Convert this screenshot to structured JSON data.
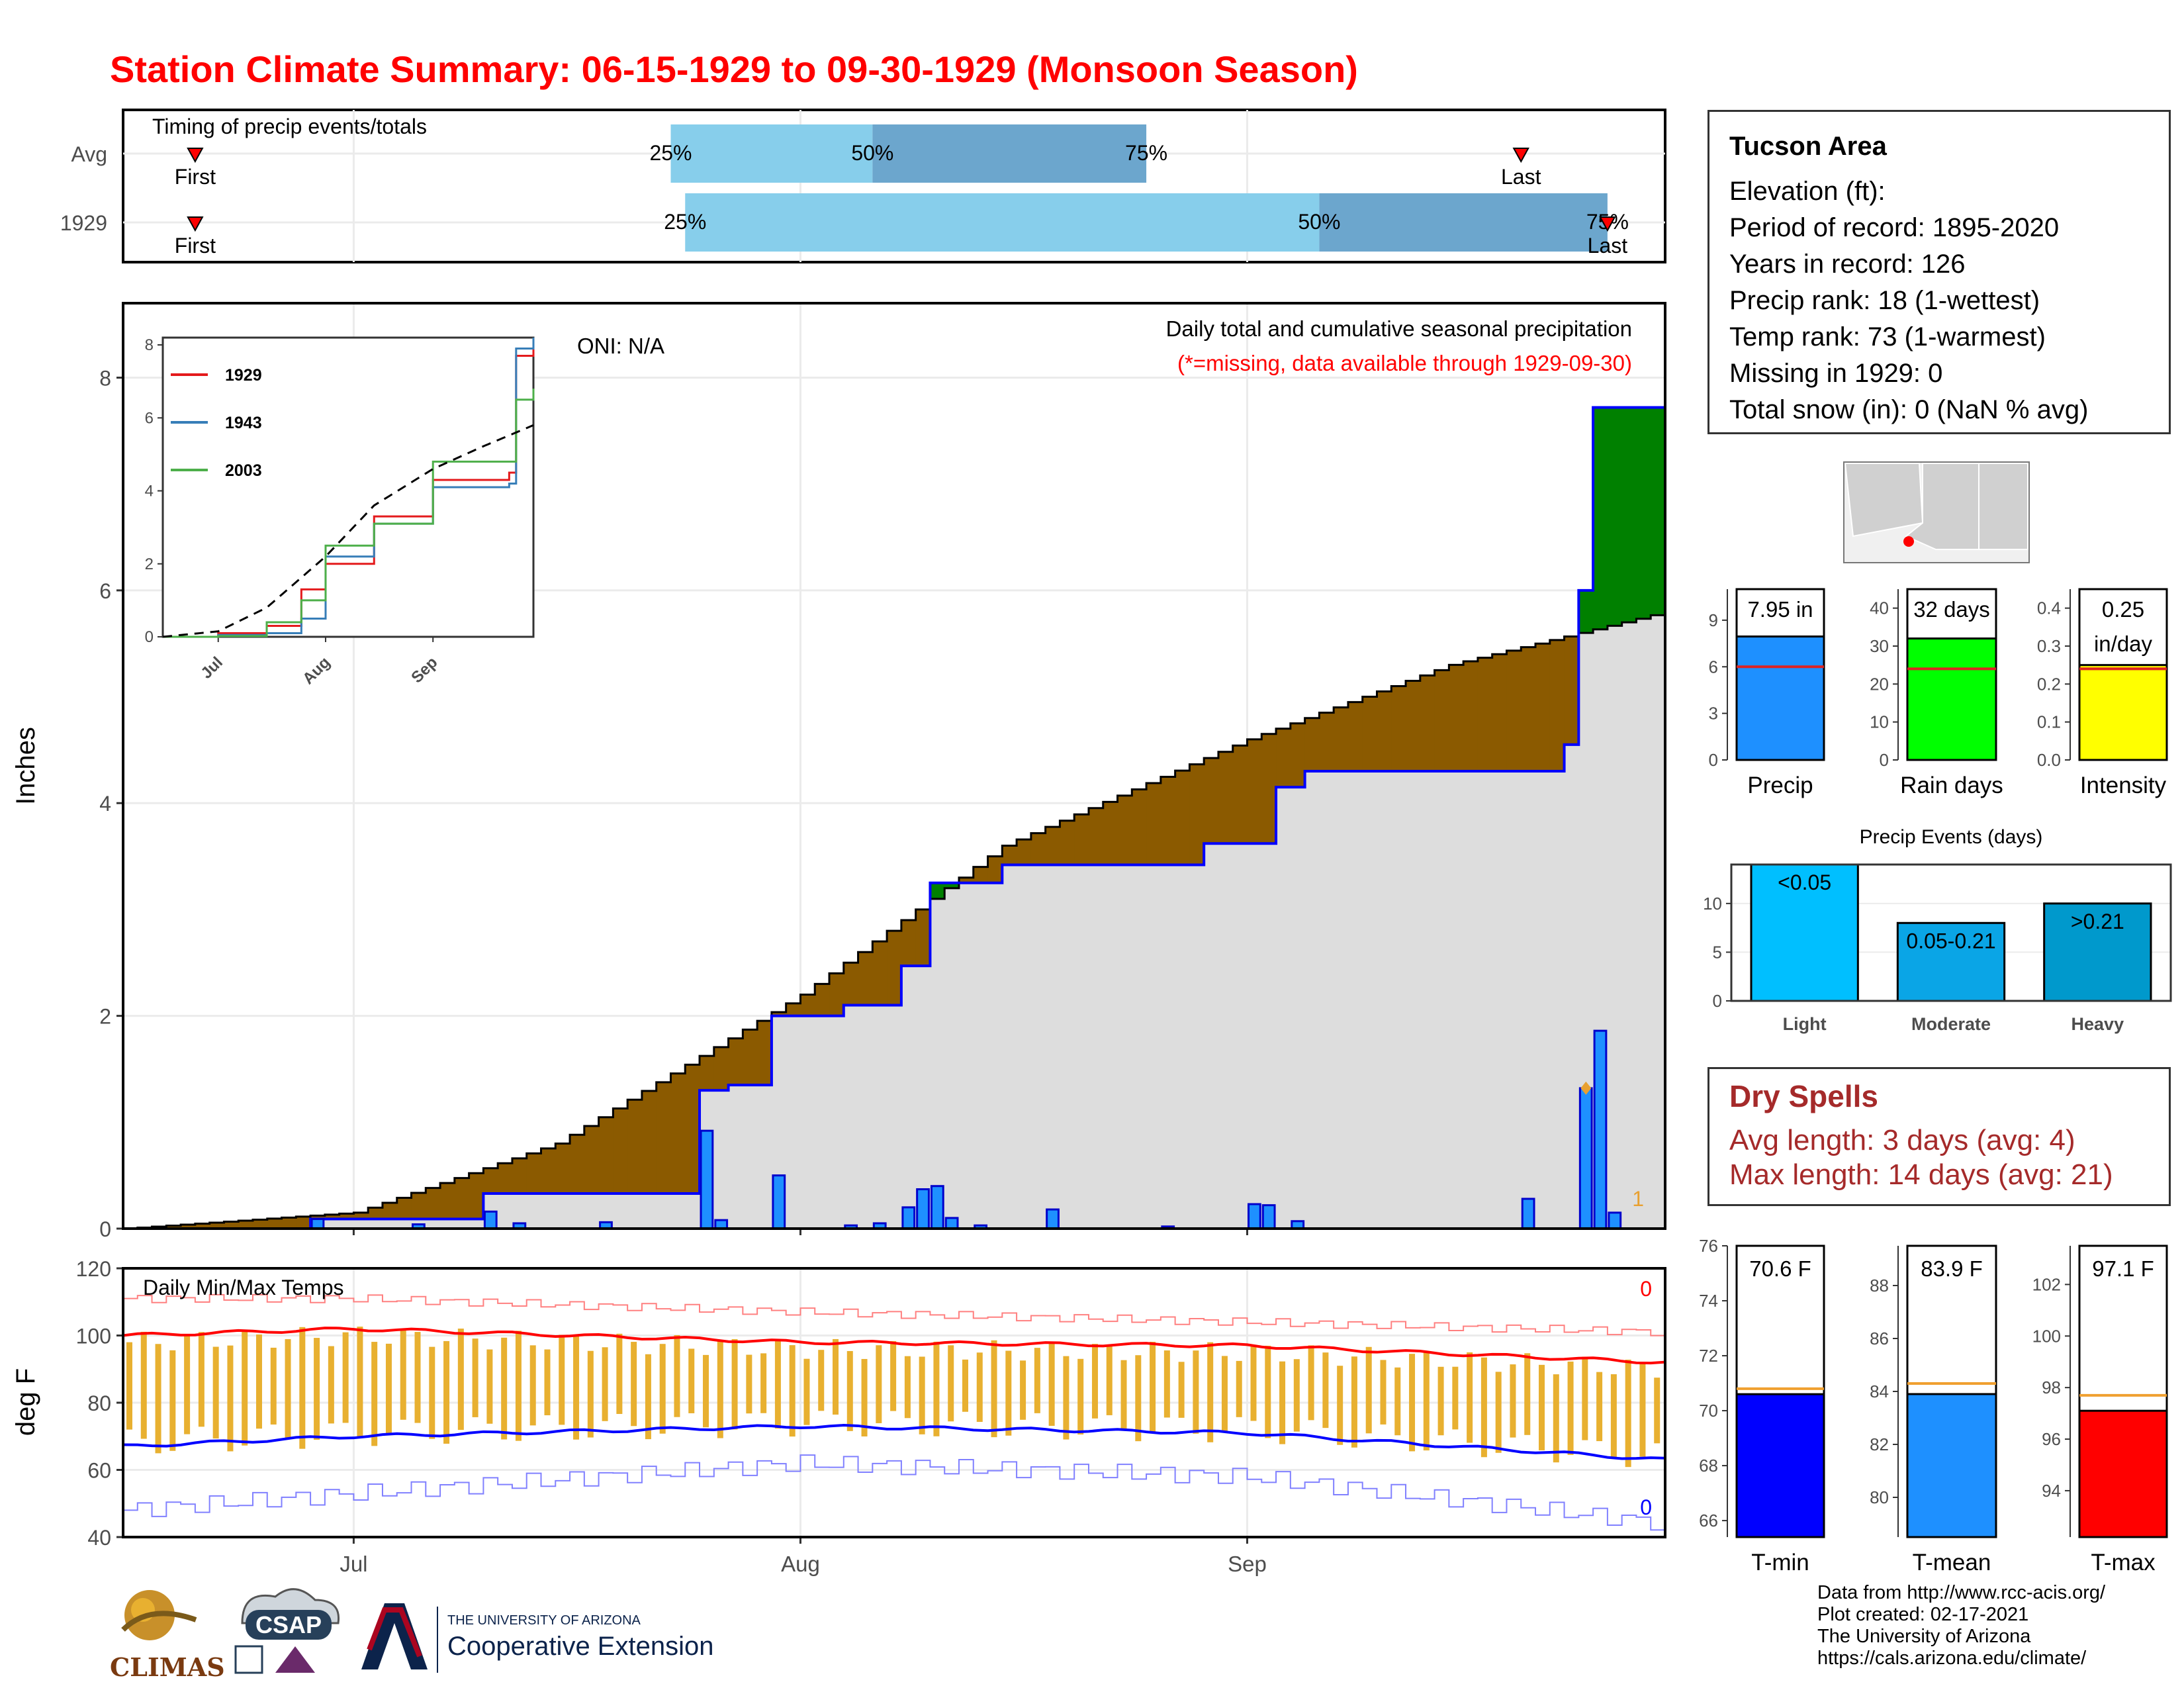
{
  "title": "Station Climate Summary: 06-15-1929 to 09-30-1929 (Monsoon Season)",
  "timing": {
    "title": "Timing of precip events/totals",
    "rows": [
      {
        "label": "Avg",
        "first_label": "First",
        "last_label": "Last",
        "p25_label": "25%",
        "p50_label": "50%",
        "p75_label": "75%"
      },
      {
        "label": "1929",
        "first_label": "First",
        "last_label": "Last",
        "p25_label": "25%",
        "p50_label": "50%",
        "p75_label": "75%"
      }
    ]
  },
  "main_chart": {
    "ylabel": "Inches",
    "oni": "ONI: N/A",
    "caption": "Daily total and cumulative seasonal precipitation",
    "missing_note": "(*=missing, data available through 1929-09-30)",
    "missing_count": "1",
    "y_ticks": [
      "0",
      "2",
      "4",
      "6",
      "8"
    ],
    "x_ticks": [
      "Jul",
      "Aug",
      "Sep"
    ]
  },
  "inset": {
    "legend": [
      "1929",
      "1943",
      "2003"
    ],
    "y_ticks": [
      "0",
      "2",
      "4",
      "6"
    ],
    "x_ticks": [
      "Jul",
      "Aug",
      "Sep"
    ]
  },
  "temp_chart": {
    "title": "Daily Min/Max Temps",
    "ylabel": "deg F",
    "y_ticks": [
      "40",
      "60",
      "80",
      "100",
      "120"
    ],
    "x_ticks": [
      "Jul",
      "Aug",
      "Sep"
    ],
    "max_missing": "0",
    "min_missing": "0"
  },
  "info": {
    "heading": "Tucson Area",
    "lines": [
      "Elevation (ft):",
      "Period of record: 1895-2020",
      "Years in record: 126",
      "Precip rank: 18 (1-wettest)",
      "Temp rank: 73 (1-warmest)",
      "Missing in 1929: 0",
      "Total snow (in): 0 (NaN % avg)"
    ]
  },
  "mini_bars": [
    {
      "label": "Precip",
      "value_label": "7.95 in",
      "ticks": [
        "0",
        "3",
        "6",
        "9"
      ]
    },
    {
      "label": "Rain days",
      "value_label": "32 days",
      "ticks": [
        "0",
        "10",
        "20",
        "30",
        "40"
      ]
    },
    {
      "label": "Intensity",
      "value_label": "0.25",
      "value_label2": "in/day",
      "ticks": [
        "0.0",
        "0.1",
        "0.2",
        "0.3",
        "0.4"
      ]
    }
  ],
  "events": {
    "title": "Precip Events (days)",
    "categories": [
      "Light",
      "Moderate",
      "Heavy"
    ],
    "bar_labels": [
      "<0.05",
      "0.05-0.21",
      ">0.21"
    ],
    "ticks": [
      "0",
      "5",
      "10"
    ]
  },
  "dry": {
    "heading": "Dry Spells",
    "lines": [
      "Avg length: 3 days (avg: 4)",
      "Max length: 14 days (avg: 21)"
    ]
  },
  "temp_bars": [
    {
      "label": "T-min",
      "value_label": "70.6 F",
      "ticks": [
        "66",
        "68",
        "70",
        "72",
        "74",
        "76"
      ]
    },
    {
      "label": "T-mean",
      "value_label": "83.9 F",
      "ticks": [
        "80",
        "82",
        "84",
        "86",
        "88"
      ]
    },
    {
      "label": "T-max",
      "value_label": "97.1 F",
      "ticks": [
        "94",
        "96",
        "98",
        "100",
        "102"
      ]
    }
  ],
  "footer": [
    "Data from http://www.rcc-acis.org/",
    "Plot created: 02-17-2021",
    "The University of Arizona",
    "https://cals.arizona.edu/climate/"
  ],
  "logos": {
    "climas": "CLIMAS",
    "csap": "CSAP",
    "ua_line1": "THE UNIVERSITY OF ARIZONA",
    "ua_line2": "Cooperative Extension"
  },
  "colors": {
    "title": "#ff0000",
    "daily_bar": "#1e90ff",
    "above_avg": "#008000",
    "below_avg": "#8b5a00",
    "avg_area": "#dddddd",
    "temp_bar": "#e8b030",
    "precip_bar": "#1e90ff",
    "raindays_bar": "#00ff00",
    "intensity_bar": "#ffff00",
    "light_bar": "#00bfff",
    "moderate_bar": "#0aa5e6",
    "heavy_bar": "#0099cc",
    "tmin_bar": "#0000ff",
    "tmean_bar": "#1e90ff",
    "tmax_bar": "#ff0000"
  },
  "chart_data": [
    {
      "type": "bar",
      "title": "Timing of precip events/totals",
      "note": "dates of first/last precip event and 25/50/75% of seasonal total",
      "categories": [
        "Avg",
        "1929"
      ],
      "series": [
        {
          "name": "First",
          "values": [
            "1929-06-20",
            "1929-06-20"
          ]
        },
        {
          "name": "25%",
          "values": [
            "1929-07-23",
            "1929-07-24"
          ]
        },
        {
          "name": "50%",
          "values": [
            "1929-08-06",
            "1929-09-06"
          ]
        },
        {
          "name": "75%",
          "values": [
            "1929-08-25",
            "1929-09-26"
          ]
        },
        {
          "name": "Last",
          "values": [
            "1929-09-20",
            "1929-09-26"
          ]
        }
      ]
    },
    {
      "type": "line",
      "title": "Daily total and cumulative seasonal precipitation",
      "ylabel": "Inches",
      "ylim": [
        0,
        8.7
      ],
      "xlim": [
        "1929-06-15",
        "1929-09-30"
      ],
      "cumulative_1929": {
        "x": [
          "1929-06-15",
          "1929-06-28",
          "1929-07-10",
          "1929-07-25",
          "1929-07-27",
          "1929-07-30",
          "1929-08-04",
          "1929-08-08",
          "1929-08-10",
          "1929-08-15",
          "1929-08-29",
          "1929-09-03",
          "1929-09-05",
          "1929-09-23",
          "1929-09-24",
          "1929-09-25",
          "1929-09-30"
        ],
        "y": [
          0,
          0.09,
          0.33,
          1.3,
          1.35,
          2.0,
          2.1,
          2.47,
          3.25,
          3.42,
          3.62,
          4.15,
          4.3,
          4.55,
          6.0,
          7.72,
          7.95
        ]
      },
      "average_cumulative": {
        "x": [
          "1929-06-15",
          "1929-07-01",
          "1929-07-15",
          "1929-08-01",
          "1929-08-15",
          "1929-09-01",
          "1929-09-15",
          "1929-09-30"
        ],
        "y": [
          0,
          0.15,
          0.8,
          2.2,
          3.6,
          4.6,
          5.3,
          5.8
        ]
      },
      "daily_precip": {
        "x": [
          "1929-06-28",
          "1929-07-05",
          "1929-07-10",
          "1929-07-12",
          "1929-07-18",
          "1929-07-25",
          "1929-07-26",
          "1929-07-30",
          "1929-08-04",
          "1929-08-06",
          "1929-08-08",
          "1929-08-09",
          "1929-08-10",
          "1929-08-11",
          "1929-08-13",
          "1929-08-18",
          "1929-08-26",
          "1929-09-01",
          "1929-09-02",
          "1929-09-04",
          "1929-09-20",
          "1929-09-24",
          "1929-09-25",
          "1929-09-26"
        ],
        "y": [
          0.09,
          0.04,
          0.16,
          0.05,
          0.06,
          0.92,
          0.08,
          0.5,
          0.03,
          0.05,
          0.2,
          0.37,
          0.4,
          0.1,
          0.03,
          0.18,
          0.02,
          0.23,
          0.22,
          0.07,
          0.28,
          1.32,
          1.86,
          0.15
        ]
      }
    },
    {
      "type": "line",
      "title": "inset: cumulative precipitation",
      "ylim": [
        0,
        8.2
      ],
      "series": [
        {
          "name": "1929",
          "x": [
            "1929-06-15",
            "1929-07-01",
            "1929-07-15",
            "1929-07-25",
            "1929-08-01",
            "1929-08-15",
            "1929-09-01",
            "1929-09-23",
            "1929-09-25",
            "1929-09-30"
          ],
          "y": [
            0,
            0.1,
            0.3,
            1.3,
            2.0,
            3.3,
            4.3,
            4.5,
            7.7,
            7.95
          ]
        },
        {
          "name": "1943",
          "x": [
            "1929-06-15",
            "1929-07-01",
            "1929-07-15",
            "1929-07-25",
            "1929-08-01",
            "1929-08-15",
            "1929-09-01",
            "1929-09-23",
            "1929-09-25",
            "1929-09-30"
          ],
          "y": [
            0,
            0.05,
            0.1,
            0.5,
            2.2,
            3.1,
            4.1,
            4.2,
            7.9,
            8.2
          ]
        },
        {
          "name": "2003",
          "x": [
            "1929-06-15",
            "1929-07-01",
            "1929-07-15",
            "1929-07-25",
            "1929-08-01",
            "1929-08-15",
            "1929-09-01",
            "1929-09-23",
            "1929-09-25",
            "1929-09-30"
          ],
          "y": [
            0,
            0.02,
            0.4,
            1.0,
            2.5,
            3.1,
            4.8,
            4.8,
            6.5,
            6.8
          ]
        },
        {
          "name": "avg",
          "x": [
            "1929-06-15",
            "1929-07-01",
            "1929-07-15",
            "1929-08-01",
            "1929-08-15",
            "1929-09-01",
            "1929-09-15",
            "1929-09-30"
          ],
          "y": [
            0,
            0.15,
            0.8,
            2.2,
            3.6,
            4.6,
            5.2,
            5.8
          ]
        }
      ]
    },
    {
      "type": "line",
      "title": "Daily Min/Max Temps",
      "ylabel": "deg F",
      "ylim": [
        40,
        120
      ],
      "series": [
        {
          "name": "record max",
          "x": [
            "1929-06-15",
            "1929-07-01",
            "1929-08-01",
            "1929-09-01",
            "1929-09-30"
          ],
          "y": [
            111,
            111,
            107,
            104,
            101
          ]
        },
        {
          "name": "average max",
          "x": [
            "1929-06-15",
            "1929-07-01",
            "1929-08-01",
            "1929-09-01",
            "1929-09-30"
          ],
          "y": [
            100,
            102,
            98,
            97,
            92
          ]
        },
        {
          "name": "average min",
          "x": [
            "1929-06-15",
            "1929-07-01",
            "1929-08-01",
            "1929-09-01",
            "1929-09-30"
          ],
          "y": [
            67,
            70,
            73,
            71,
            63
          ]
        },
        {
          "name": "record min",
          "x": [
            "1929-06-15",
            "1929-07-01",
            "1929-08-01",
            "1929-09-01",
            "1929-09-30"
          ],
          "y": [
            48,
            53,
            62,
            58,
            44
          ]
        }
      ]
    },
    {
      "type": "bar",
      "categories": [
        "Precip"
      ],
      "values": [
        7.95
      ],
      "avg": 6.0,
      "ylim": [
        0,
        11
      ]
    },
    {
      "type": "bar",
      "categories": [
        "Rain days"
      ],
      "values": [
        32
      ],
      "avg": 24,
      "ylim": [
        0,
        45
      ]
    },
    {
      "type": "bar",
      "categories": [
        "Intensity"
      ],
      "values": [
        0.25
      ],
      "avg": 0.24,
      "ylim": [
        0,
        0.45
      ]
    },
    {
      "type": "bar",
      "title": "Precip Events (days)",
      "categories": [
        "Light",
        "Moderate",
        "Heavy"
      ],
      "values": [
        14,
        8,
        10
      ],
      "ylim": [
        0,
        14
      ]
    },
    {
      "type": "bar",
      "categories": [
        "T-min"
      ],
      "values": [
        70.6
      ],
      "avg": 70.8,
      "ylim": [
        65.4,
        76
      ]
    },
    {
      "type": "bar",
      "categories": [
        "T-mean"
      ],
      "values": [
        83.9
      ],
      "avg": 84.3,
      "ylim": [
        78.5,
        89.5
      ]
    },
    {
      "type": "bar",
      "categories": [
        "T-max"
      ],
      "values": [
        97.1
      ],
      "avg": 97.7,
      "ylim": [
        92.2,
        103.5
      ]
    }
  ]
}
